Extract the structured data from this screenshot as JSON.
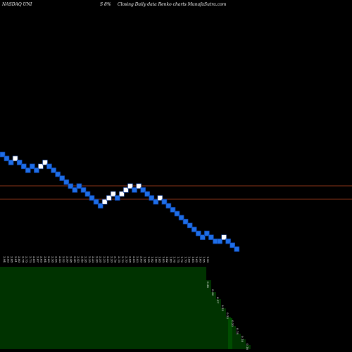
{
  "chart_data": {
    "type": "renko",
    "exchange_ticker": "NASDAQ UNI",
    "change": "S 8%",
    "description": "Closing Daily data  Renko  charts MunafaSutra.com",
    "colors": {
      "background": "#000000",
      "up_brick": "#ffffff",
      "down_brick": "#1e6ee8",
      "brick_border": "#0a3a9a",
      "reference_line": "#8a3318",
      "volume_fill": "#003300",
      "volume_step": "#004d00",
      "text": "#ffffff"
    },
    "bricks": [
      {
        "level": 0,
        "dir": "down"
      },
      {
        "level": -1,
        "dir": "down"
      },
      {
        "level": -2,
        "dir": "down"
      },
      {
        "level": -1,
        "dir": "up"
      },
      {
        "level": -2,
        "dir": "down"
      },
      {
        "level": -3,
        "dir": "down"
      },
      {
        "level": -4,
        "dir": "down"
      },
      {
        "level": -3,
        "dir": "down"
      },
      {
        "level": -4,
        "dir": "down"
      },
      {
        "level": -3,
        "dir": "up"
      },
      {
        "level": -2,
        "dir": "up"
      },
      {
        "level": -3,
        "dir": "down"
      },
      {
        "level": -4,
        "dir": "down"
      },
      {
        "level": -5,
        "dir": "down"
      },
      {
        "level": -6,
        "dir": "down"
      },
      {
        "level": -7,
        "dir": "down"
      },
      {
        "level": -8,
        "dir": "down"
      },
      {
        "level": -9,
        "dir": "down"
      },
      {
        "level": -8,
        "dir": "down"
      },
      {
        "level": -9,
        "dir": "down"
      },
      {
        "level": -10,
        "dir": "down"
      },
      {
        "level": -11,
        "dir": "down"
      },
      {
        "level": -12,
        "dir": "down"
      },
      {
        "level": -13,
        "dir": "down"
      },
      {
        "level": -12,
        "dir": "up"
      },
      {
        "level": -11,
        "dir": "up"
      },
      {
        "level": -10,
        "dir": "up"
      },
      {
        "level": -11,
        "dir": "down"
      },
      {
        "level": -10,
        "dir": "up"
      },
      {
        "level": -9,
        "dir": "up"
      },
      {
        "level": -8,
        "dir": "up"
      },
      {
        "level": -9,
        "dir": "down"
      },
      {
        "level": -8,
        "dir": "up"
      },
      {
        "level": -9,
        "dir": "down"
      },
      {
        "level": -10,
        "dir": "down"
      },
      {
        "level": -11,
        "dir": "down"
      },
      {
        "level": -12,
        "dir": "down"
      },
      {
        "level": -11,
        "dir": "up"
      },
      {
        "level": -12,
        "dir": "down"
      },
      {
        "level": -13,
        "dir": "down"
      },
      {
        "level": -14,
        "dir": "down"
      },
      {
        "level": -15,
        "dir": "down"
      },
      {
        "level": -16,
        "dir": "down"
      },
      {
        "level": -17,
        "dir": "down"
      },
      {
        "level": -18,
        "dir": "down"
      },
      {
        "level": -19,
        "dir": "down"
      },
      {
        "level": -20,
        "dir": "down"
      },
      {
        "level": -21,
        "dir": "down"
      },
      {
        "level": -20,
        "dir": "down"
      },
      {
        "level": -21,
        "dir": "down"
      },
      {
        "level": -22,
        "dir": "down"
      },
      {
        "level": -22,
        "dir": "down"
      },
      {
        "level": -21,
        "dir": "up"
      },
      {
        "level": -22,
        "dir": "down"
      },
      {
        "level": -23,
        "dir": "down"
      },
      {
        "level": -24,
        "dir": "down"
      }
    ],
    "reference_lines": [
      "line-1",
      "line-2"
    ],
    "price_labels": [
      "2.94",
      "2.93",
      "2.88",
      "2.81",
      "2.80",
      "2.78",
      "2.75",
      "2.73",
      "2.69",
      "2.67",
      "2.65",
      "2.64",
      "2.60",
      "2.58",
      "2.55",
      "2.53",
      "2.52",
      "2.50",
      "2.48",
      "2.45",
      "2.43",
      "2.40",
      "2.38",
      "2.35",
      "2.33",
      "2.30",
      "2.28",
      "2.25",
      "2.23",
      "2.20",
      "2.18",
      "2.15",
      "2.13",
      "2.10",
      "2.08",
      "2.05",
      "2.03",
      "2.00",
      "1.98",
      "1.95",
      "1.92",
      "1.90",
      "1.88",
      "1.85",
      "1.82",
      "1.80",
      "1.78",
      "1.75",
      "1.72",
      "1.70",
      "1.68",
      "1.65",
      "1.62",
      "1.60",
      "1.55",
      "1.50",
      "1.45",
      "1.40",
      "1.35",
      "1.30",
      "1.25",
      "1.20",
      "1.15",
      "1.10",
      "1.05",
      "1.00",
      "0.98",
      "0.95",
      "0.92",
      "0.90",
      "0.88",
      "0.85",
      "0.82",
      "0.80",
      "0.78",
      "0.75",
      "0.72",
      "0.70",
      "0.68",
      "0.65",
      "0.62",
      "0.60",
      "0.58",
      "0.55",
      "0.52",
      "0.50",
      "0.48",
      "0.45",
      "0.42",
      "0.40",
      "0.38",
      "0.35",
      "0.32",
      "0.30",
      "0.29",
      "0.27",
      "0.25",
      "0.23",
      "0.21",
      "0.19",
      "0.17",
      "0.15",
      "0.13",
      "0.11",
      "0.10",
      "1.28"
    ],
    "volume_steps": [
      {
        "label": "0.34",
        "x": 0
      },
      {
        "label": "0.32",
        "x": 1
      },
      {
        "label": "0.27",
        "x": 2
      },
      {
        "label": "0.25",
        "x": 3
      },
      {
        "label": "0.23",
        "x": 4
      },
      {
        "label": "0.20",
        "x": 5
      },
      {
        "label": "0.18",
        "x": 6
      },
      {
        "label": "0.18",
        "x": 7
      },
      {
        "label": "0.16",
        "x": 8
      }
    ]
  }
}
